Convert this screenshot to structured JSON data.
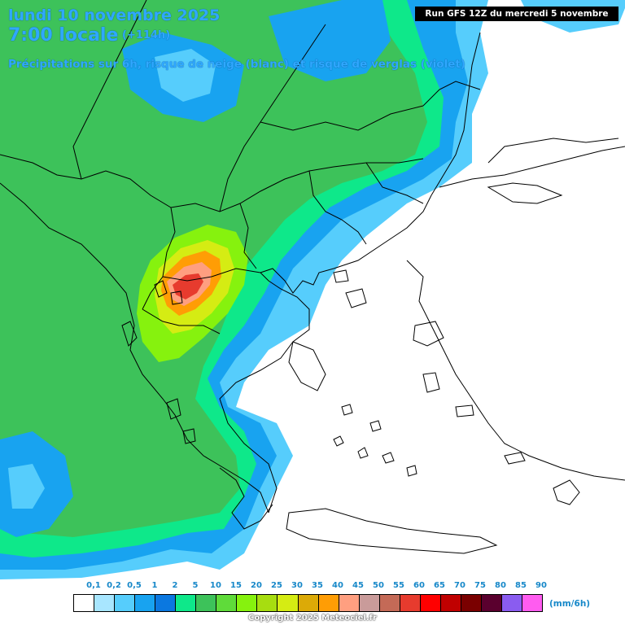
{
  "header": {
    "date": "lundi 10 novembre 2025",
    "time": "7:00 locale",
    "lead": "(+114h)",
    "description": "Précipitations sur 6h, risque de neige (blanc) et risque de verglas (violet)",
    "run": "Run GFS 12Z du mercredi 5 novembre 2025"
  },
  "legend": {
    "ticks": [
      "0,1",
      "0,2",
      "0,5",
      "1",
      "2",
      "5",
      "10",
      "15",
      "20",
      "25",
      "30",
      "35",
      "40",
      "45",
      "50",
      "55",
      "60",
      "65",
      "70",
      "75",
      "80",
      "85",
      "90"
    ],
    "colors": [
      "#ffffff",
      "#a8e6ff",
      "#56cdfc",
      "#18a3f0",
      "#0b78e0",
      "#0ee88a",
      "#3dc25a",
      "#5fdb3a",
      "#86f20e",
      "#a7dd10",
      "#d5ec13",
      "#dcaa07",
      "#ff9d05",
      "#ff9f80",
      "#c99b9a",
      "#c46a57",
      "#e73b2e",
      "#ff0000",
      "#c00000",
      "#7a0000",
      "#5a002e",
      "#8a5cf0",
      "#ff5cf0"
    ],
    "unit": "(mm/6h)"
  },
  "map": {
    "sea_color": "#ffffff",
    "land_precip_palette": {
      "light_blue": "#56cdfc",
      "blue": "#18a3f0",
      "green_light": "#0ee88a",
      "green": "#3dc25a",
      "green_lime": "#86f20e",
      "yellow": "#d5ec13",
      "orange": "#ff9d05",
      "salmon": "#ff9f80",
      "red": "#e73b2e"
    }
  },
  "footer": {
    "copyright": "Copyright 2025 Meteociel.fr"
  }
}
